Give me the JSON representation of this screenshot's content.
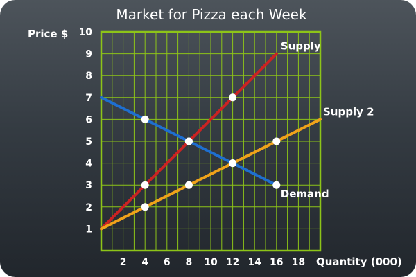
{
  "chart_data": {
    "type": "line",
    "title": "Market for Pizza each Week",
    "xlabel": "Quantity (000)",
    "ylabel": "Price $",
    "xlim": [
      0,
      20
    ],
    "ylim": [
      0,
      10
    ],
    "x_ticks": [
      2,
      4,
      6,
      8,
      10,
      12,
      14,
      16,
      18
    ],
    "y_ticks": [
      1,
      2,
      3,
      4,
      5,
      6,
      7,
      8,
      9,
      10
    ],
    "grid": true,
    "series": [
      {
        "name": "Supply",
        "color": "#cc2222",
        "points": [
          {
            "x": 0,
            "y": 1
          },
          {
            "x": 16,
            "y": 9
          }
        ],
        "markers": [
          {
            "x": 4,
            "y": 3
          },
          {
            "x": 8,
            "y": 5
          },
          {
            "x": 12,
            "y": 7
          }
        ]
      },
      {
        "name": "Supply 2",
        "color": "#f0a21a",
        "points": [
          {
            "x": 0,
            "y": 1
          },
          {
            "x": 20,
            "y": 6
          }
        ],
        "markers": [
          {
            "x": 4,
            "y": 2
          },
          {
            "x": 8,
            "y": 3
          },
          {
            "x": 12,
            "y": 4
          },
          {
            "x": 16,
            "y": 5
          }
        ]
      },
      {
        "name": "Demand",
        "color": "#1e6fd0",
        "points": [
          {
            "x": 0,
            "y": 7
          },
          {
            "x": 16,
            "y": 3
          }
        ],
        "markers": [
          {
            "x": 4,
            "y": 6
          },
          {
            "x": 8,
            "y": 5
          },
          {
            "x": 12,
            "y": 4
          },
          {
            "x": 16,
            "y": 3
          }
        ]
      }
    ]
  }
}
